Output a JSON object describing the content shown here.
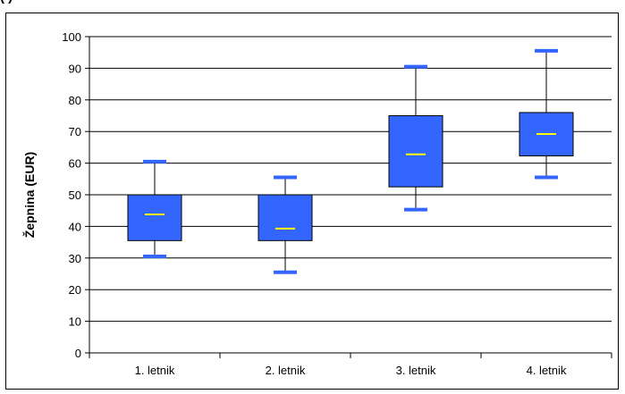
{
  "page": {
    "top_fragment": "(                   )"
  },
  "chart_data": {
    "type": "boxplot",
    "title": "",
    "xlabel": "",
    "ylabel": "Žepnina (EUR)",
    "ylim": [
      0,
      100
    ],
    "yticks": [
      0,
      10,
      20,
      30,
      40,
      50,
      60,
      70,
      80,
      90,
      100
    ],
    "grid": "horizontal",
    "categories": [
      "1. letnik",
      "2. letnik",
      "3. letnik",
      "4. letnik"
    ],
    "boxes": [
      {
        "min": 30.5,
        "q1": 35.5,
        "median": 43.8,
        "q3": 50,
        "max": 60.5
      },
      {
        "min": 25.5,
        "q1": 35.5,
        "median": 39.3,
        "q3": 50,
        "max": 55.5
      },
      {
        "min": 45.3,
        "q1": 52.5,
        "median": 62.8,
        "q3": 75,
        "max": 90.5
      },
      {
        "min": 55.5,
        "q1": 62.3,
        "median": 69.2,
        "q3": 76,
        "max": 95.5
      }
    ],
    "colors": {
      "box_fill": "#3366ff",
      "median": "#ffff00",
      "whisker": "#000000",
      "cap": "#3366ff",
      "grid": "#000000"
    }
  }
}
